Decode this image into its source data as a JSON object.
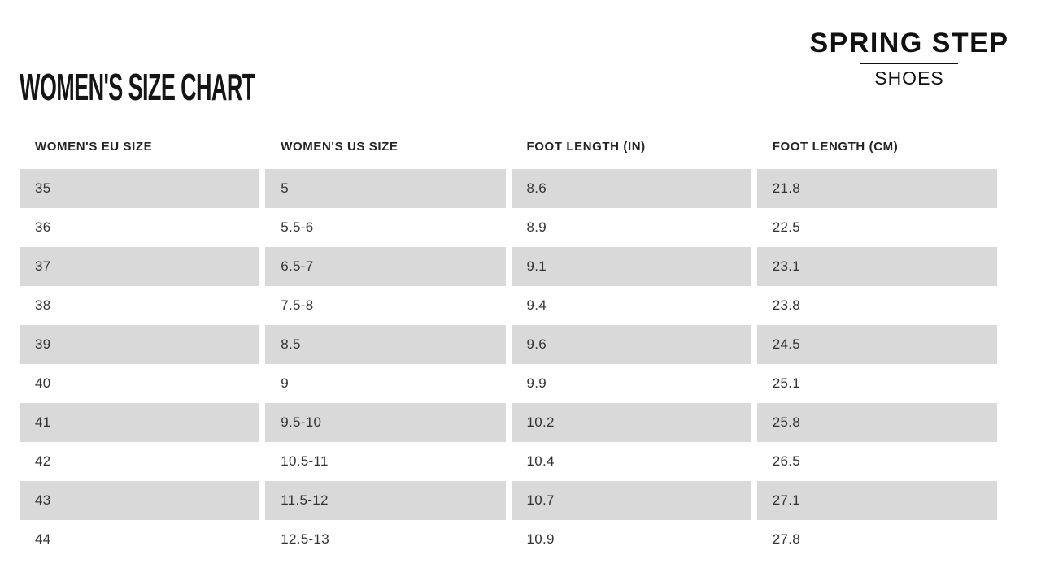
{
  "page": {
    "title": "WOMEN'S SIZE CHART"
  },
  "brand": {
    "name": "SPRING STEP",
    "tagline": "SHOES"
  },
  "size_chart": {
    "columns": [
      "WOMEN'S EU SIZE",
      "WOMEN'S US SIZE",
      "FOOT LENGTH (IN)",
      "FOOT LENGTH (CM)"
    ],
    "rows": [
      [
        "35",
        "5",
        "8.6",
        "21.8"
      ],
      [
        "36",
        "5.5-6",
        "8.9",
        "22.5"
      ],
      [
        "37",
        "6.5-7",
        "9.1",
        "23.1"
      ],
      [
        "38",
        "7.5-8",
        "9.4",
        "23.8"
      ],
      [
        "39",
        "8.5",
        "9.6",
        "24.5"
      ],
      [
        "40",
        "9",
        "9.9",
        "25.1"
      ],
      [
        "41",
        "9.5-10",
        "10.2",
        "25.8"
      ],
      [
        "42",
        "10.5-11",
        "10.4",
        "26.5"
      ],
      [
        "43",
        "11.5-12",
        "10.7",
        "27.1"
      ],
      [
        "44",
        "12.5-13",
        "10.9",
        "27.8"
      ]
    ]
  },
  "colors": {
    "row_stripe": "#d9d9d9",
    "text": "#333333",
    "title_text": "#151515",
    "background": "#ffffff"
  }
}
